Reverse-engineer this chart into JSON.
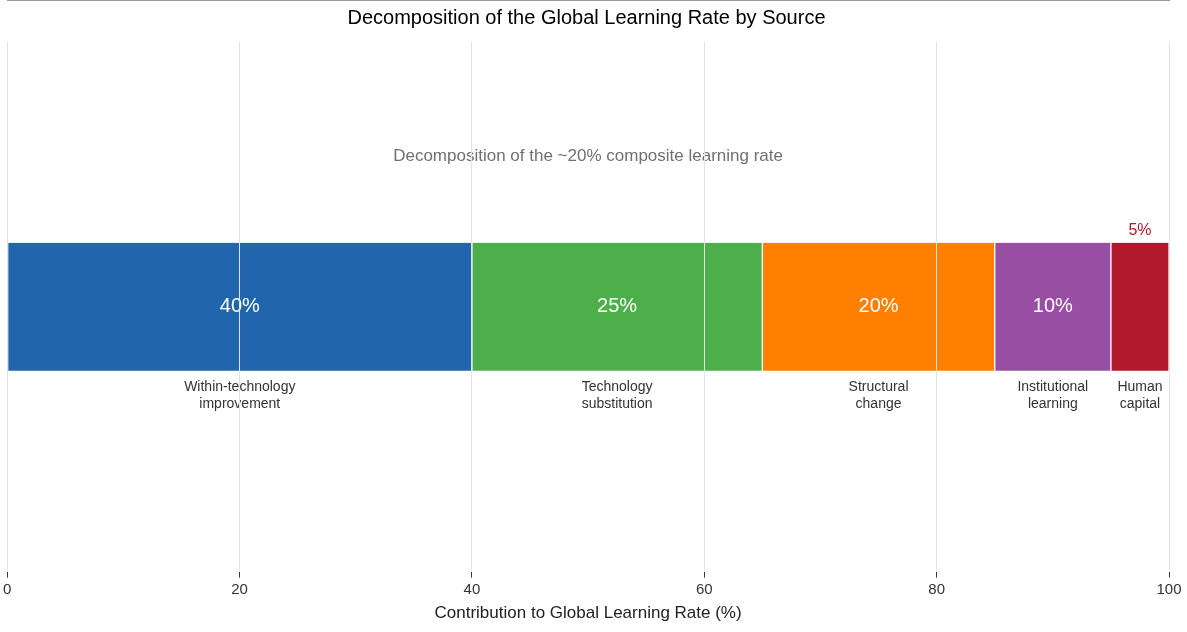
{
  "chart_data": {
    "type": "bar",
    "orientation": "horizontal",
    "stacked": true,
    "title": "Decomposition of the Global Learning Rate by Source",
    "xlabel": "Contribution to Global Learning Rate (%)",
    "annotations": [
      "Decomposition of the ~20% composite learning rate"
    ],
    "categories": [
      null
    ],
    "series": [
      {
        "name": "Within-technology improvement",
        "color": "#2166ac",
        "values": [
          40
        ],
        "value_labels": [
          "40%"
        ]
      },
      {
        "name": "Technology substitution",
        "color": "#4daf4a",
        "values": [
          25
        ],
        "value_labels": [
          "25%"
        ]
      },
      {
        "name": "Structural change",
        "color": "#ff7f00",
        "values": [
          20
        ],
        "value_labels": [
          "20%"
        ]
      },
      {
        "name": "Institutional learning",
        "color": "#984ea3",
        "values": [
          10
        ],
        "value_labels": [
          "10%"
        ]
      },
      {
        "name": "Human capital",
        "color": "#b2182b",
        "values": [
          5
        ],
        "value_labels": [
          "5%"
        ]
      }
    ],
    "xlim": [
      0,
      100
    ],
    "xticks": [
      0,
      20,
      40,
      60,
      80,
      100
    ],
    "grid": "x",
    "legend": false,
    "tick_labels": "x"
  }
}
